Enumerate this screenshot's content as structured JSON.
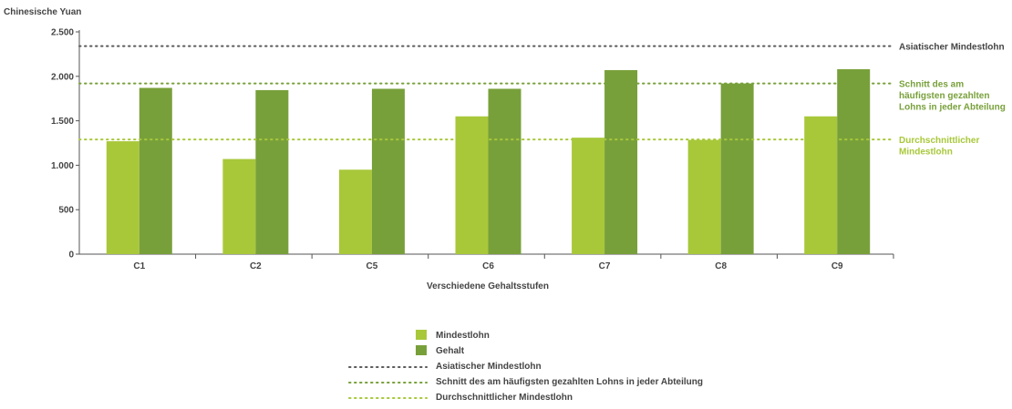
{
  "colors": {
    "mindestlohn": "#a8c83a",
    "gehalt": "#78a03a",
    "asian_line": "#5a5a5a",
    "avg_paid_line": "#78a03a",
    "avg_min_line": "#a8c83a",
    "axis": "#555555",
    "text": "#444444"
  },
  "chart_data": {
    "type": "bar",
    "ylabel": "Chinesische Yuan",
    "xlabel": "Verschiedene Gehaltsstufen",
    "ylim": [
      0,
      2500
    ],
    "yticks": [
      0,
      500,
      1000,
      1500,
      2000,
      2500
    ],
    "ytick_labels": [
      "0",
      "500",
      "1.000",
      "1.500",
      "2.000",
      "2.500"
    ],
    "categories": [
      "C1",
      "C2",
      "C5",
      "C6",
      "C7",
      "C8",
      "C9"
    ],
    "series": [
      {
        "name": "Mindestlohn",
        "values": [
          1270,
          1070,
          950,
          1550,
          1310,
          1285,
          1550
        ]
      },
      {
        "name": "Gehalt",
        "values": [
          1870,
          1845,
          1860,
          1860,
          2070,
          1920,
          2080
        ]
      }
    ],
    "reference_lines": [
      {
        "name": "Asiatischer Mindestlohn",
        "value": 2340,
        "label_lines": [
          "Asiatischer Mindestlohn"
        ]
      },
      {
        "name": "Schnitt des am häufigsten gezahlten Lohns in jeder Abteilung",
        "value": 1920,
        "label_lines": [
          "Schnitt des am",
          "häufigsten gezahlten",
          "Lohns in jeder Abteilung"
        ]
      },
      {
        "name": "Durchschnittlicher Mindestlohn",
        "value": 1290,
        "label_lines": [
          "Durchschnittlicher",
          "Mindestlohn"
        ]
      }
    ],
    "legend": {
      "placement": "bottom-center",
      "items": [
        {
          "label": "Mindestlohn",
          "kind": "box",
          "color_key": "mindestlohn"
        },
        {
          "label": "Gehalt",
          "kind": "box",
          "color_key": "gehalt"
        },
        {
          "label": "Asiatischer Mindestlohn",
          "kind": "dots",
          "color_key": "asian_line"
        },
        {
          "label": "Schnitt des am häufigsten gezahlten Lohns in jeder Abteilung",
          "kind": "dots",
          "color_key": "avg_paid_line"
        },
        {
          "label": "Durchschnittlicher Mindestlohn",
          "kind": "dots",
          "color_key": "avg_min_line"
        }
      ]
    },
    "grid": false
  }
}
